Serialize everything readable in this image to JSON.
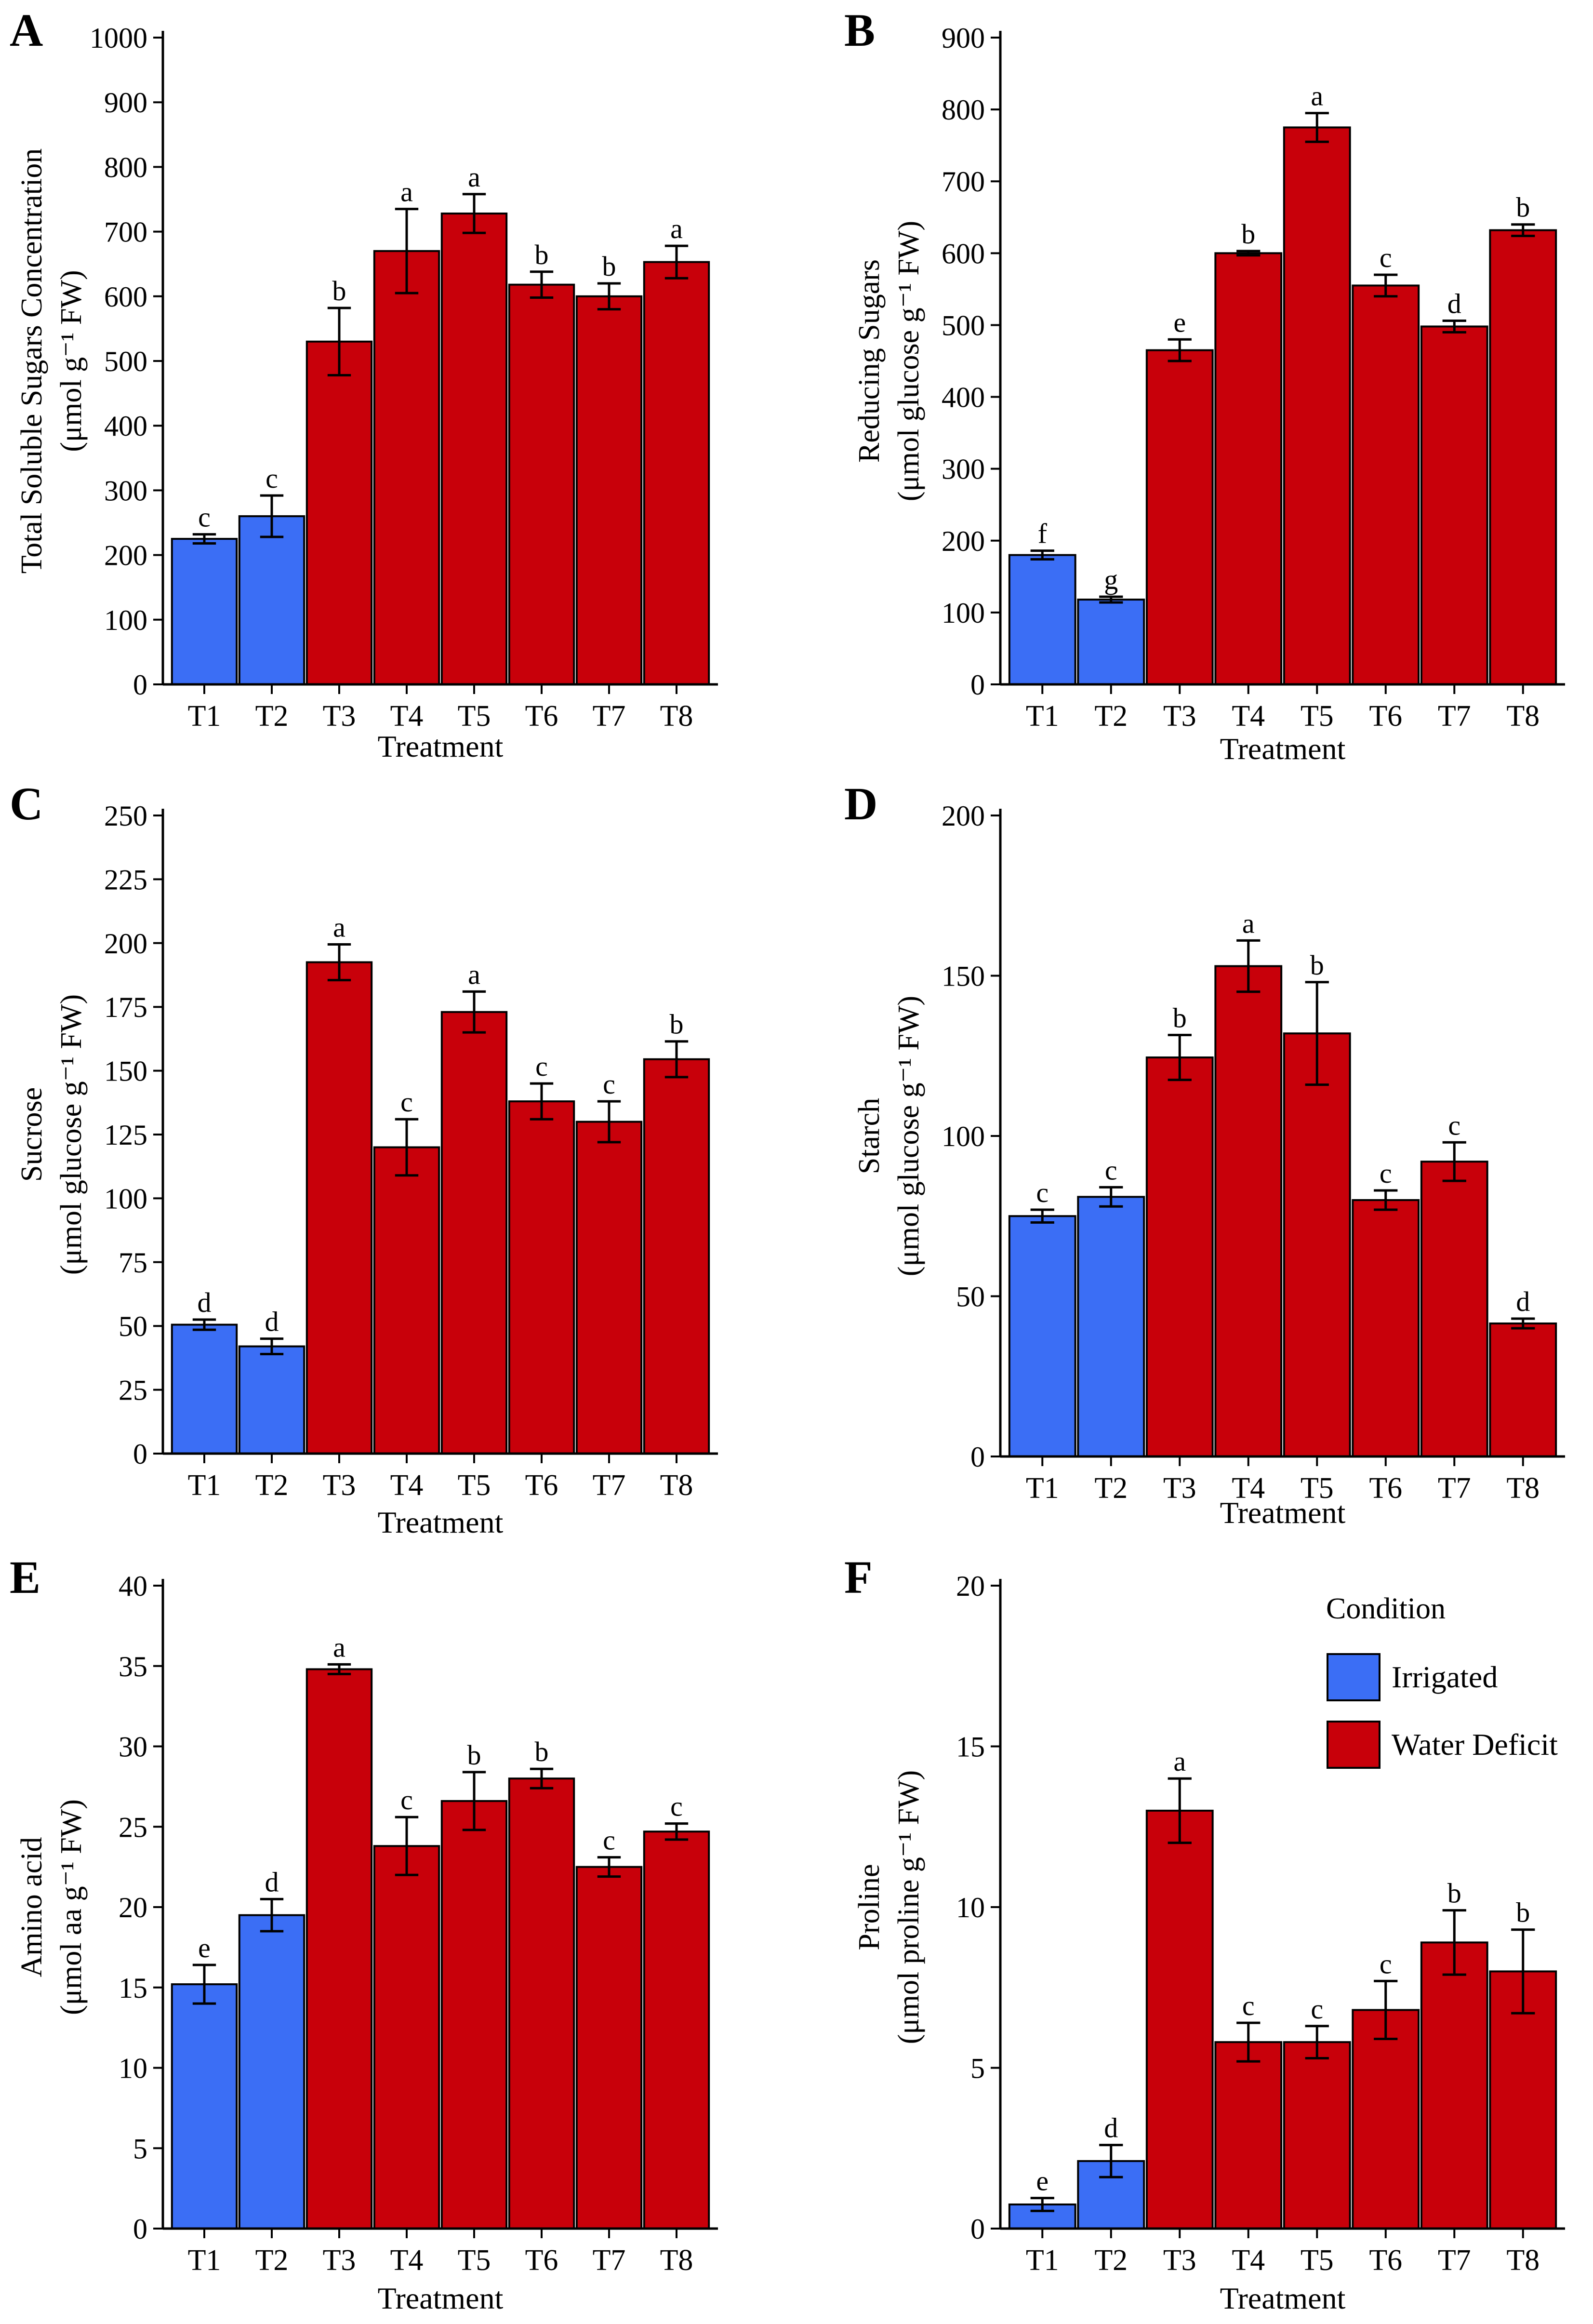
{
  "colors": {
    "Irrigated": "#3b6ef5",
    "Water Deficit": "#c8000a"
  },
  "legend": {
    "title": "Condition",
    "items": [
      {
        "label": "Irrigated",
        "color": "#3b6ef5"
      },
      {
        "label": "Water Deficit",
        "color": "#c8000a"
      }
    ]
  },
  "chart_data": [
    {
      "panel": "A",
      "type": "bar",
      "categories": [
        "T1",
        "T2",
        "T3",
        "T4",
        "T5",
        "T6",
        "T7",
        "T8"
      ],
      "conditions": [
        "Irrigated",
        "Irrigated",
        "Water Deficit",
        "Water Deficit",
        "Water Deficit",
        "Water Deficit",
        "Water Deficit",
        "Water Deficit"
      ],
      "values": [
        225,
        260,
        530,
        670,
        728,
        618,
        600,
        653
      ],
      "errors": [
        7,
        32,
        52,
        65,
        30,
        20,
        20,
        25
      ],
      "letters": [
        "c",
        "c",
        "b",
        "a",
        "a",
        "b",
        "b",
        "a"
      ],
      "xlabel": "Treatment",
      "ylabel_lines": [
        "Total Soluble Sugars Concentration",
        "(μmol g⁻¹ FW)"
      ],
      "ylim": [
        0,
        1000
      ],
      "yticks": [
        0,
        100,
        200,
        300,
        400,
        500,
        600,
        700,
        800,
        900,
        1000
      ]
    },
    {
      "panel": "B",
      "type": "bar",
      "categories": [
        "T1",
        "T2",
        "T3",
        "T4",
        "T5",
        "T6",
        "T7",
        "T8"
      ],
      "conditions": [
        "Irrigated",
        "Irrigated",
        "Water Deficit",
        "Water Deficit",
        "Water Deficit",
        "Water Deficit",
        "Water Deficit",
        "Water Deficit"
      ],
      "values": [
        180,
        118,
        465,
        600,
        775,
        555,
        498,
        632
      ],
      "errors": [
        6,
        4,
        15,
        3,
        20,
        15,
        8,
        8
      ],
      "letters": [
        "f",
        "g",
        "e",
        "b",
        "a",
        "c",
        "d",
        "b"
      ],
      "xlabel": "Treatment",
      "ylabel_lines": [
        "Reducing Sugars",
        "(μmol glucose g⁻¹ FW)"
      ],
      "ylim": [
        0,
        900
      ],
      "yticks": [
        0,
        100,
        200,
        300,
        400,
        500,
        600,
        700,
        800,
        900
      ]
    },
    {
      "panel": "C",
      "type": "bar",
      "categories": [
        "T1",
        "T2",
        "T3",
        "T4",
        "T5",
        "T6",
        "T7",
        "T8"
      ],
      "conditions": [
        "Irrigated",
        "Irrigated",
        "Water Deficit",
        "Water Deficit",
        "Water Deficit",
        "Water Deficit",
        "Water Deficit",
        "Water Deficit"
      ],
      "values": [
        50.5,
        42,
        192.5,
        120,
        173,
        138,
        130,
        154.5
      ],
      "errors": [
        2,
        3,
        7,
        11,
        8,
        7,
        8,
        7
      ],
      "letters": [
        "d",
        "d",
        "a",
        "c",
        "a",
        "c",
        "c",
        "b"
      ],
      "xlabel": "Treatment",
      "ylabel_lines": [
        "Sucrose",
        "(μmol glucose g⁻¹ FW)"
      ],
      "ylim": [
        0,
        250
      ],
      "yticks": [
        0,
        25,
        50,
        75,
        100,
        125,
        150,
        175,
        200,
        225,
        250
      ]
    },
    {
      "panel": "D",
      "type": "bar",
      "categories": [
        "T1",
        "T2",
        "T3",
        "T4",
        "T5",
        "T6",
        "T7",
        "T8"
      ],
      "conditions": [
        "Irrigated",
        "Irrigated",
        "Water Deficit",
        "Water Deficit",
        "Water Deficit",
        "Water Deficit",
        "Water Deficit",
        "Water Deficit"
      ],
      "values": [
        75,
        81,
        124.5,
        153,
        132,
        80,
        92,
        41.5
      ],
      "errors": [
        2,
        3,
        7,
        8,
        16,
        3,
        6,
        1.5
      ],
      "letters": [
        "c",
        "c",
        "b",
        "a",
        "b",
        "c",
        "c",
        "d"
      ],
      "xlabel": "Treatment",
      "ylabel_lines": [
        "Starch",
        "(μmol glucose g⁻¹ FW)"
      ],
      "ylim": [
        0,
        200
      ],
      "yticks": [
        0,
        50,
        100,
        150,
        200
      ]
    },
    {
      "panel": "E",
      "type": "bar",
      "categories": [
        "T1",
        "T2",
        "T3",
        "T4",
        "T5",
        "T6",
        "T7",
        "T8"
      ],
      "conditions": [
        "Irrigated",
        "Irrigated",
        "Water Deficit",
        "Water Deficit",
        "Water Deficit",
        "Water Deficit",
        "Water Deficit",
        "Water Deficit"
      ],
      "values": [
        15.2,
        19.5,
        34.8,
        23.8,
        26.6,
        28,
        22.5,
        24.7
      ],
      "errors": [
        1.2,
        1,
        0.3,
        1.8,
        1.8,
        0.6,
        0.6,
        0.5
      ],
      "letters": [
        "e",
        "d",
        "a",
        "c",
        "b",
        "b",
        "c",
        "c"
      ],
      "xlabel": "Treatment",
      "ylabel_lines": [
        "Amino acid",
        "(μmol aa g⁻¹ FW)"
      ],
      "ylim": [
        0,
        40
      ],
      "yticks": [
        0,
        5,
        10,
        15,
        20,
        25,
        30,
        35,
        40
      ]
    },
    {
      "panel": "F",
      "type": "bar",
      "categories": [
        "T1",
        "T2",
        "T3",
        "T4",
        "T5",
        "T6",
        "T7",
        "T8"
      ],
      "conditions": [
        "Irrigated",
        "Irrigated",
        "Water Deficit",
        "Water Deficit",
        "Water Deficit",
        "Water Deficit",
        "Water Deficit",
        "Water Deficit"
      ],
      "values": [
        0.75,
        2.1,
        13,
        5.8,
        5.8,
        6.8,
        8.9,
        8
      ],
      "errors": [
        0.2,
        0.5,
        1,
        0.6,
        0.5,
        0.9,
        1,
        1.3
      ],
      "letters": [
        "e",
        "d",
        "a",
        "c",
        "c",
        "c",
        "b",
        "b"
      ],
      "xlabel": "Treatment",
      "ylabel_lines": [
        "Proline",
        "(μmol proline g⁻¹ FW)"
      ],
      "ylim": [
        0,
        20
      ],
      "yticks": [
        0,
        5,
        10,
        15,
        20
      ]
    }
  ]
}
